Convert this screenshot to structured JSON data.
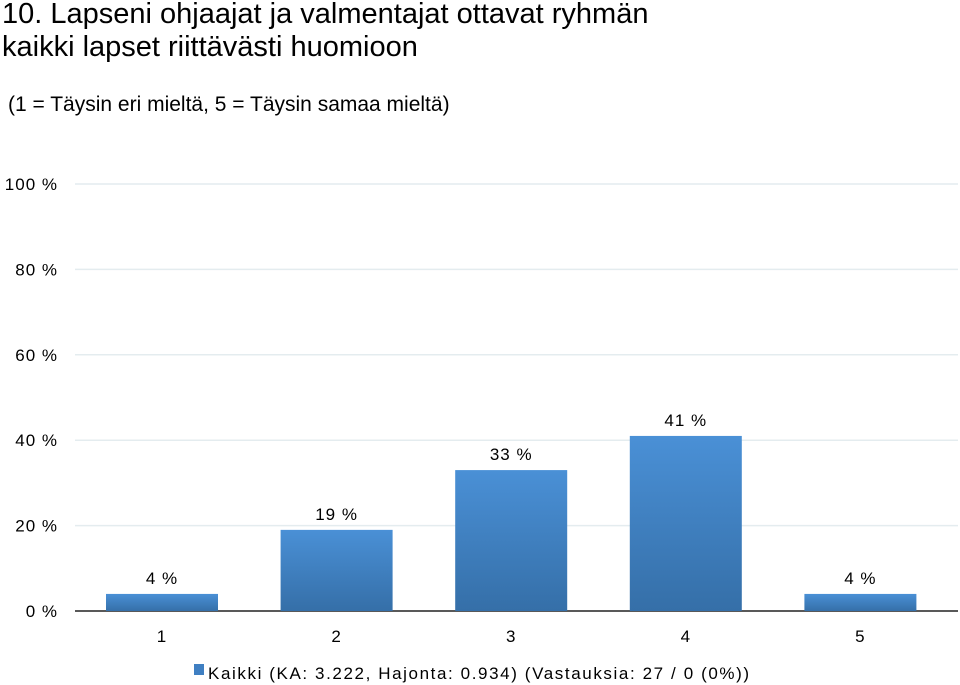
{
  "page": {
    "title_line1": "10. Lapseni  ohjaajat ja valmentajat ottavat ryhmän",
    "title_line2": "kaikki lapset riittävästi huomioon",
    "subtitle": "(1 = Täysin eri mieltä, 5 = Täysin samaa mieltä)"
  },
  "colors": {
    "bar_top": "#4a90d6",
    "bar_bottom": "#356fa8",
    "legend_swatch": "#3f7fc2",
    "gridline": "#e4ecef",
    "axis": "#222222"
  },
  "chart_data": {
    "type": "bar",
    "categories": [
      "1",
      "2",
      "3",
      "4",
      "5"
    ],
    "series": [
      {
        "name": "Kaikki (KA: 3.222, Hajonta: 0.934) (Vastauksia: 27 / 0 (0%))",
        "values": [
          4,
          19,
          33,
          41,
          4
        ],
        "labels": [
          "4 %",
          "19 %",
          "33 %",
          "41 %",
          "4 %"
        ]
      }
    ],
    "y_ticks": [
      "0 %",
      "20 %",
      "40 %",
      "60 %",
      "80 %",
      "100 %"
    ],
    "ylim": [
      0,
      100
    ],
    "grid": true,
    "legend_position": "bottom-left"
  }
}
